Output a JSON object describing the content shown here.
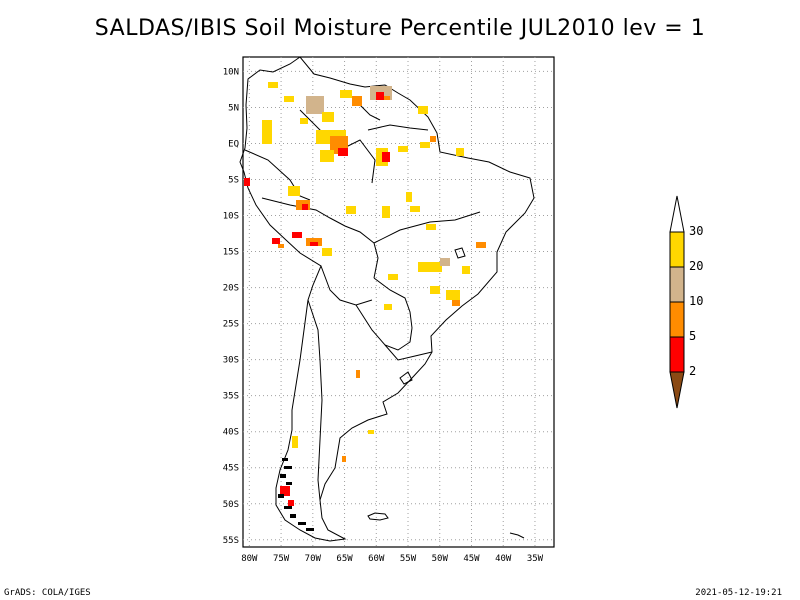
{
  "title": "SALDAS/IBIS Soil Moisture Percentile JUL2010 lev = 1",
  "map": {
    "lon_range": [
      -81,
      -32
    ],
    "lat_range": [
      -56,
      12
    ],
    "lon_ticks": [
      "80W",
      "75W",
      "70W",
      "65W",
      "60W",
      "55W",
      "50W",
      "45W",
      "40W",
      "35W"
    ],
    "lat_ticks": [
      "10N",
      "5N",
      "EQ",
      "5S",
      "10S",
      "15S",
      "20S",
      "25S",
      "30S",
      "35S",
      "40S",
      "45S",
      "50S",
      "55S"
    ],
    "grid": true,
    "region": "South America"
  },
  "legend": {
    "placement": "right",
    "levels": [
      "2",
      "5",
      "10",
      "20",
      "30"
    ],
    "colors": {
      "below_2": "#8b4a14",
      "2_5": "#ff0000",
      "5_10": "#ff8c00",
      "10_20": "#d2b48c",
      "20_30": "#ffd700",
      "above_30": "#ffffff"
    }
  },
  "colors": {
    "coast": "#000000",
    "grid": "#a0a0a0"
  },
  "footer": {
    "left": "GrADS: COLA/IGES",
    "right": "2021-05-12-19:21"
  }
}
